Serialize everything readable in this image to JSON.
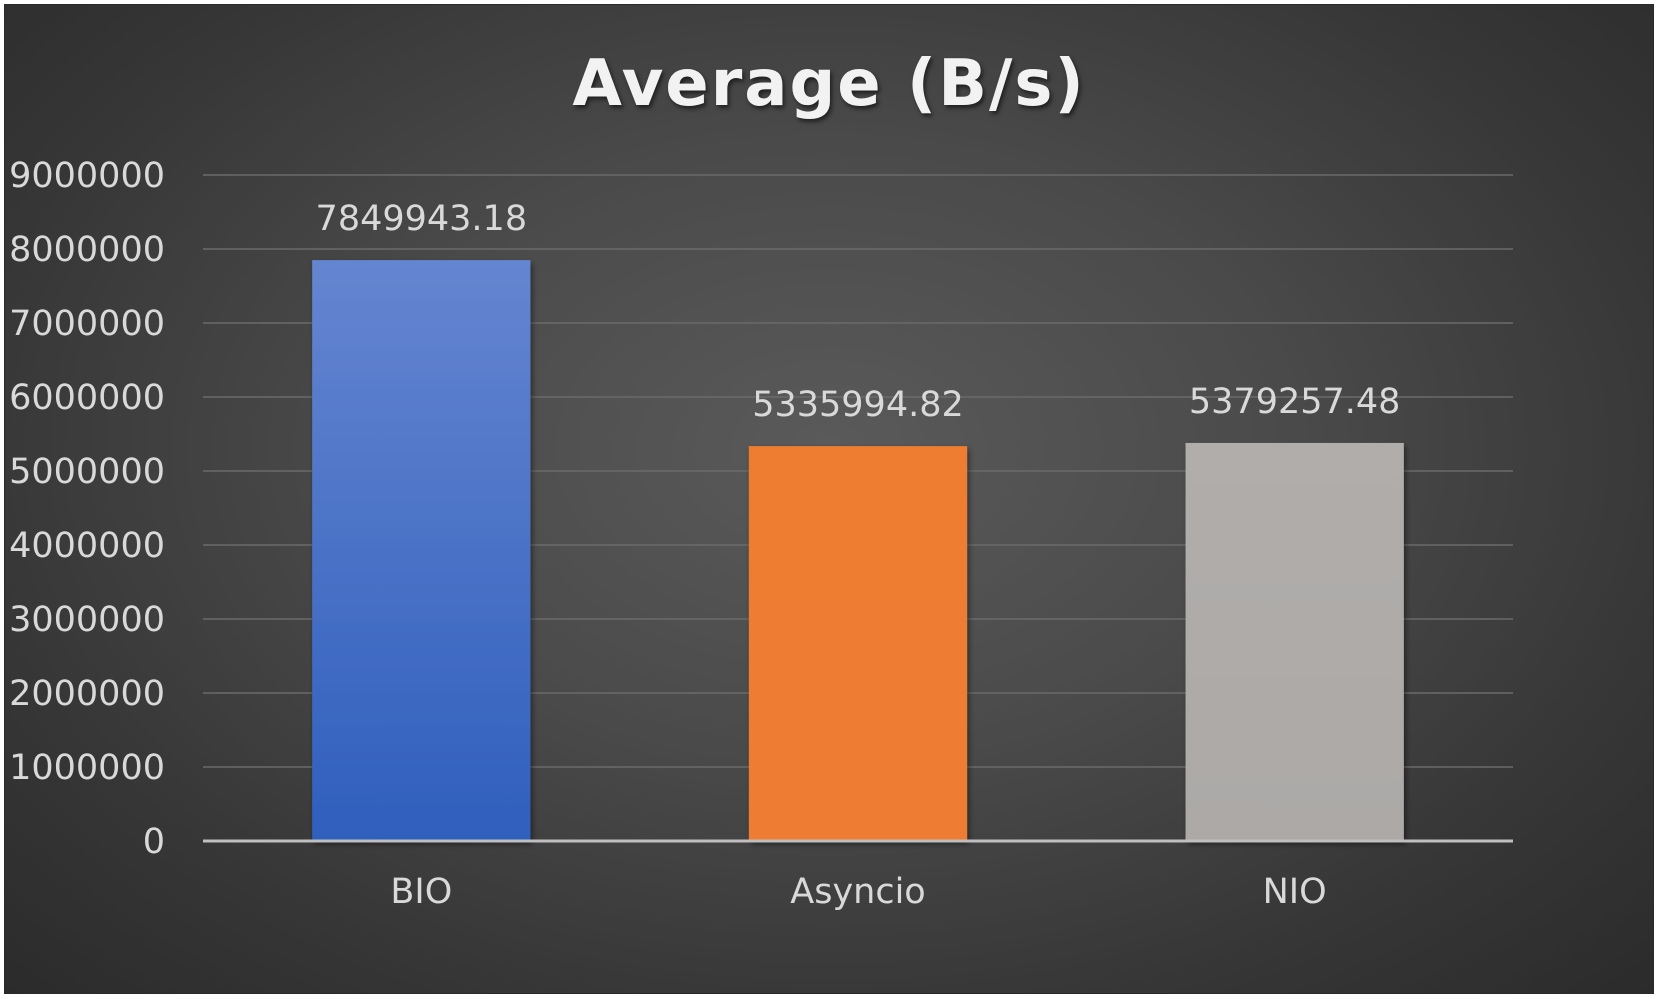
{
  "chart_data": {
    "type": "bar",
    "title": "Average (B/s)",
    "categories": [
      "BIO",
      "Asyncio",
      "NIO"
    ],
    "values": [
      7849943.18,
      5335994.82,
      5379257.48
    ],
    "data_labels": [
      "7849943.18",
      "5335994.82",
      "5379257.48"
    ],
    "bar_colors": [
      "#4472c4",
      "#ed7d31",
      "#a5a5a5"
    ],
    "ylim": [
      0,
      9000000
    ],
    "yticks": [
      "0",
      "1000000",
      "2000000",
      "3000000",
      "4000000",
      "5000000",
      "6000000",
      "7000000",
      "8000000",
      "9000000"
    ],
    "xlabel": "",
    "ylabel": "",
    "grid": true,
    "legend": "none"
  }
}
